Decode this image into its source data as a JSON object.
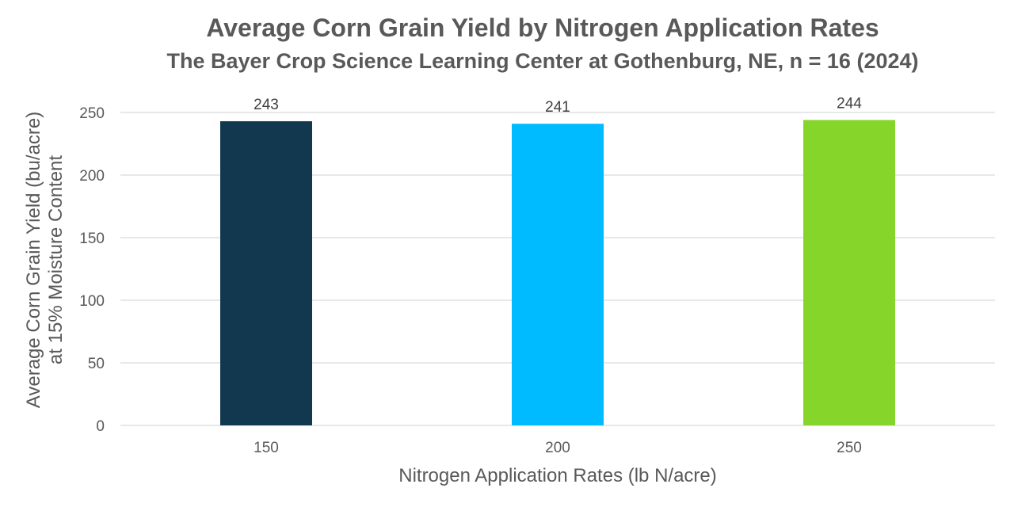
{
  "chart_data": {
    "type": "bar",
    "title": "Average Corn Grain Yield by Nitrogen Application Rates",
    "subtitle": "The Bayer Crop Science Learning Center at Gothenburg, NE, n = 16 (2024)",
    "xlabel": "Nitrogen Application Rates (lb N/acre)",
    "ylabel_line1": "Average Corn Grain Yield (bu/acre)",
    "ylabel_line2": "at 15% Moisture Content",
    "categories": [
      "150",
      "200",
      "250"
    ],
    "values": [
      243,
      241,
      244
    ],
    "data_labels": [
      "243",
      "241",
      "244"
    ],
    "colors": [
      "#12384f",
      "#00bbff",
      "#86d52a"
    ],
    "ylim": [
      0,
      250
    ],
    "yticks": [
      0,
      50,
      100,
      150,
      200,
      250
    ],
    "ytick_labels": [
      "0",
      "50",
      "100",
      "150",
      "200",
      "250"
    ],
    "grid": true,
    "gridline_color": "#d9d9d9"
  }
}
